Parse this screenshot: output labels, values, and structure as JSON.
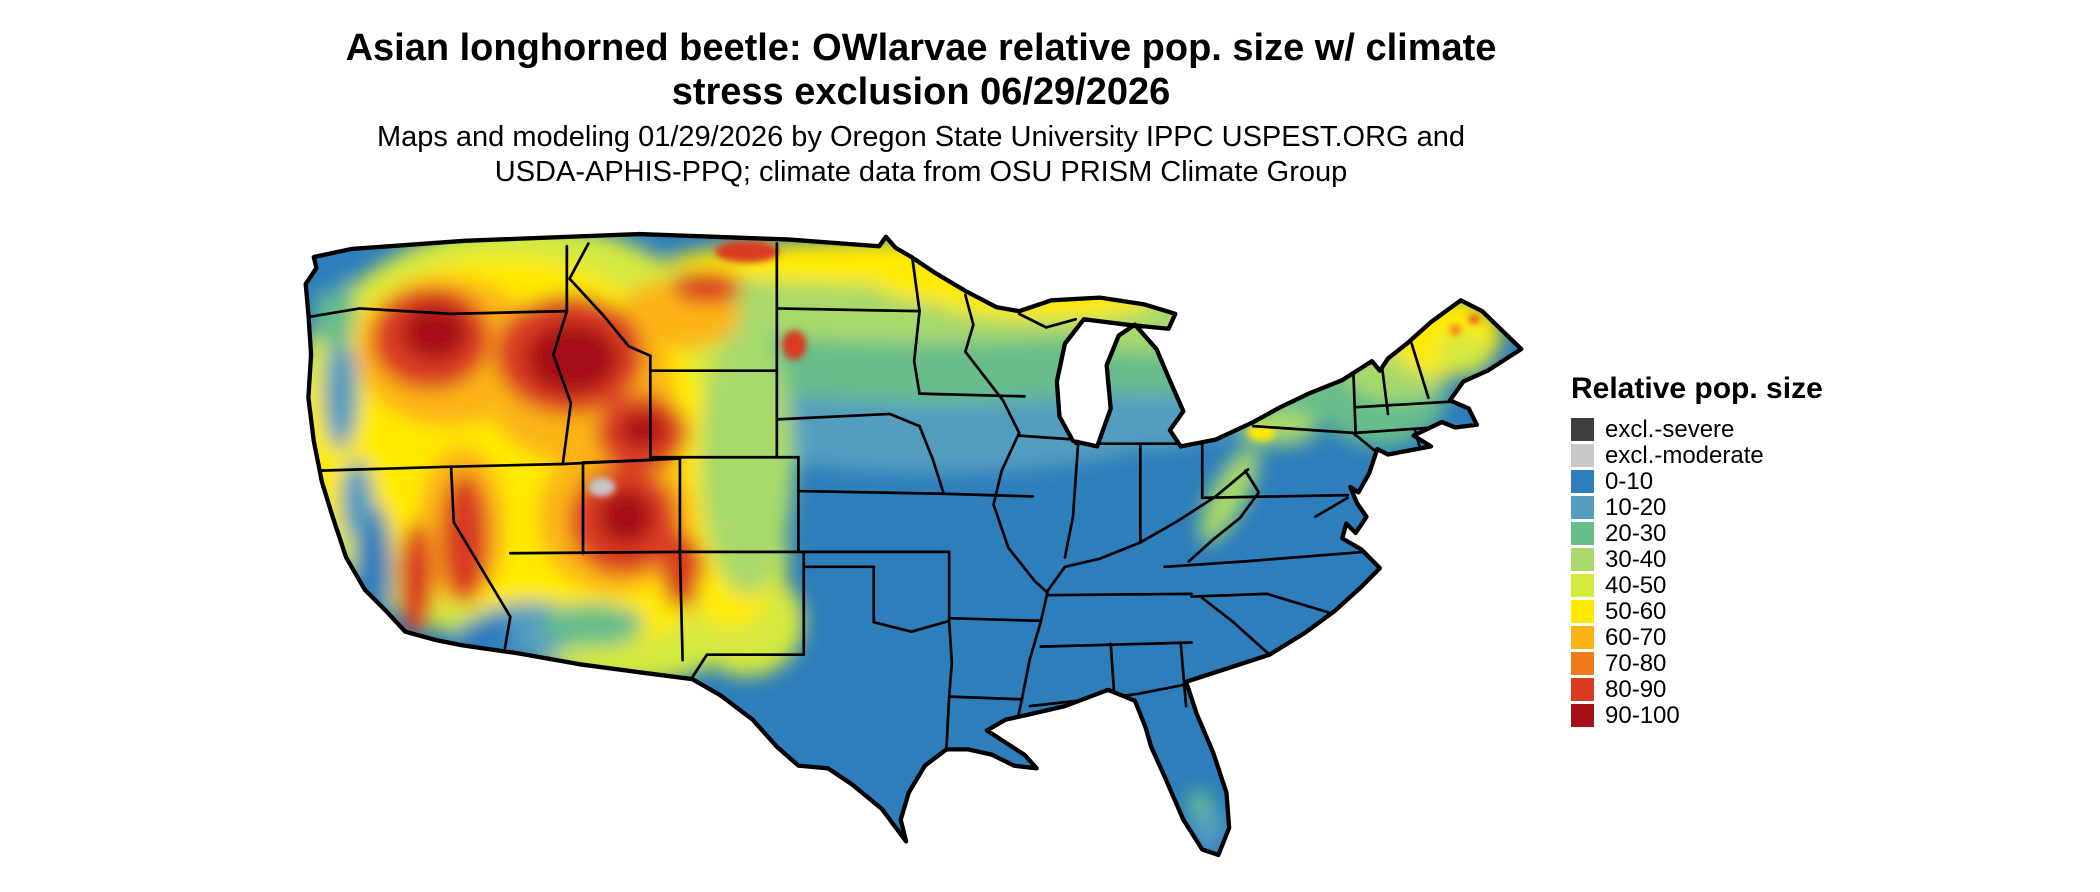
{
  "title": {
    "line1": "Asian longhorned beetle: OWlarvae relative pop. size w/ climate",
    "line2": "stress exclusion 06/29/2026"
  },
  "subtitle": {
    "line1": "Maps and modeling 01/29/2026 by Oregon State University IPPC USPEST.ORG and",
    "line2": "USDA-APHIS-PPQ; climate data from OSU PRISM Climate Group"
  },
  "legend": {
    "title": "Relative pop. size",
    "items": [
      {
        "label": "excl.-severe",
        "color": "#3f3f3f"
      },
      {
        "label": "excl.-moderate",
        "color": "#c8c8c8"
      },
      {
        "label": "0-10",
        "color": "#2e7ebc"
      },
      {
        "label": "10-20",
        "color": "#539dc0"
      },
      {
        "label": "20-30",
        "color": "#67bd8b"
      },
      {
        "label": "30-40",
        "color": "#a8d96a"
      },
      {
        "label": "40-50",
        "color": "#d5e93f"
      },
      {
        "label": "50-60",
        "color": "#ffea00"
      },
      {
        "label": "60-70",
        "color": "#fcb415"
      },
      {
        "label": "70-80",
        "color": "#ef7c1a"
      },
      {
        "label": "80-90",
        "color": "#d93a20"
      },
      {
        "label": "90-100",
        "color": "#a50f15"
      }
    ]
  },
  "map": {
    "region": "Contiguous United States",
    "style": "raster choropleth with black state borders on white background",
    "high_value_regions": "Mountain West (E. Washington/Oregon, Idaho, Montana, Wyoming, Utah, Colorado Rockies, Sierra Nevada, Nevada ranges), spots in Maine/New England",
    "mid_value_regions": "Northern Plains, upper Midwest (MN/WI/MI), New England, Appalachian ridge, eastern New Mexico",
    "low_value_regions": "Southeast, Gulf Coast, southern Plains, Ohio Valley, California Central Valley, coastal Pacific Northwest"
  }
}
